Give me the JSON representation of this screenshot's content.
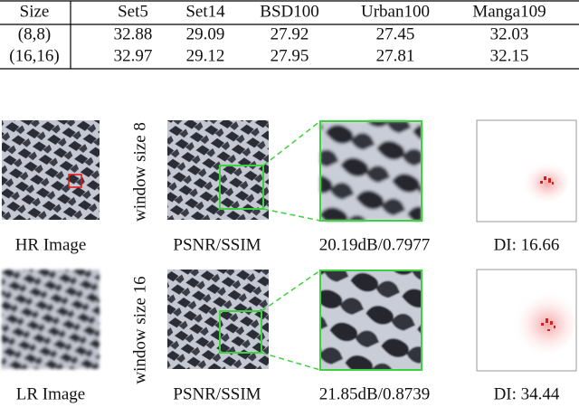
{
  "table": {
    "header": [
      "Size",
      "Set5",
      "Set14",
      "BSD100",
      "Urban100",
      "Manga109"
    ],
    "rows": [
      [
        "(8,8)",
        "32.88",
        "29.09",
        "27.92",
        "27.45",
        "32.03"
      ],
      [
        "(16,16)",
        "32.97",
        "29.12",
        "27.95",
        "27.81",
        "32.15"
      ]
    ]
  },
  "figure": {
    "hr_label": "HR Image",
    "lr_label": "LR Image",
    "rows": [
      {
        "window_label": "window size 8",
        "metric_label": "PSNR/SSIM",
        "score": "20.19dB/0.7977",
        "di": "DI: 16.66"
      },
      {
        "window_label": "window size 16",
        "metric_label": "PSNR/SSIM",
        "score": "21.85dB/0.8739",
        "di": "DI: 34.44"
      }
    ]
  }
}
